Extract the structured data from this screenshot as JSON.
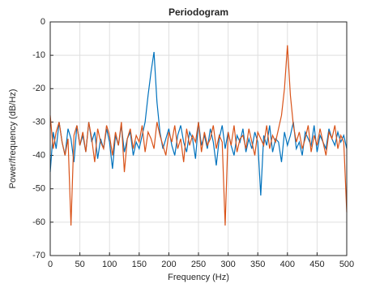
{
  "chart_data": {
    "type": "line",
    "title": "Periodogram",
    "xlabel": "Frequency (Hz)",
    "ylabel": "Power/frequency (dB/Hz)",
    "x": [
      0,
      5,
      10,
      15,
      20,
      25,
      30,
      35,
      40,
      45,
      50,
      55,
      60,
      65,
      70,
      75,
      80,
      85,
      90,
      95,
      100,
      105,
      110,
      115,
      120,
      125,
      130,
      135,
      140,
      145,
      150,
      155,
      160,
      165,
      170,
      175,
      180,
      185,
      190,
      195,
      200,
      205,
      210,
      215,
      220,
      225,
      230,
      235,
      240,
      245,
      250,
      255,
      260,
      265,
      270,
      275,
      280,
      285,
      290,
      295,
      300,
      305,
      310,
      315,
      320,
      325,
      330,
      335,
      340,
      345,
      350,
      355,
      360,
      365,
      370,
      375,
      380,
      385,
      390,
      395,
      400,
      405,
      410,
      415,
      420,
      425,
      430,
      435,
      440,
      445,
      450,
      455,
      460,
      465,
      470,
      475,
      480,
      485,
      490,
      495,
      500
    ],
    "series": [
      {
        "color": "#0072BD",
        "values": [
          -45,
          -33,
          -38,
          -30,
          -36,
          -40,
          -32,
          -35,
          -42,
          -31,
          -37,
          -34,
          -39,
          -30,
          -36,
          -33,
          -41,
          -35,
          -38,
          -32,
          -36,
          -44,
          -34,
          -37,
          -31,
          -39,
          -35,
          -33,
          -40,
          -36,
          -38,
          -34,
          -30,
          -22,
          -15,
          -9,
          -24,
          -33,
          -38,
          -35,
          -32,
          -37,
          -40,
          -34,
          -31,
          -36,
          -39,
          -33,
          -35,
          -41,
          -30,
          -37,
          -34,
          -38,
          -32,
          -36,
          -43,
          -35,
          -31,
          -38,
          -33,
          -37,
          -40,
          -34,
          -36,
          -32,
          -39,
          -35,
          -38,
          -33,
          -36,
          -52,
          -34,
          -37,
          -31,
          -39,
          -35,
          -36,
          -42,
          -33,
          -37,
          -34,
          -30,
          -38,
          -36,
          -40,
          -33,
          -35,
          -37,
          -31,
          -39,
          -34,
          -36,
          -38,
          -32,
          -35,
          -37,
          -33,
          -36,
          -34,
          -38
        ]
      },
      {
        "color": "#D95319",
        "values": [
          -28,
          -38,
          -33,
          -30,
          -36,
          -40,
          -35,
          -61,
          -34,
          -31,
          -37,
          -33,
          -39,
          -30,
          -35,
          -42,
          -32,
          -36,
          -38,
          -31,
          -34,
          -40,
          -33,
          -37,
          -30,
          -45,
          -35,
          -32,
          -38,
          -34,
          -36,
          -31,
          -39,
          -33,
          -35,
          -38,
          -30,
          -34,
          -37,
          -40,
          -33,
          -36,
          -31,
          -38,
          -35,
          -42,
          -32,
          -37,
          -34,
          -36,
          -30,
          -39,
          -33,
          -37,
          -35,
          -31,
          -38,
          -34,
          -36,
          -61,
          -33,
          -37,
          -31,
          -39,
          -35,
          -34,
          -38,
          -32,
          -36,
          -40,
          -33,
          -35,
          -37,
          -31,
          -38,
          -34,
          -36,
          -32,
          -28,
          -20,
          -7,
          -22,
          -31,
          -36,
          -33,
          -38,
          -35,
          -31,
          -39,
          -34,
          -37,
          -32,
          -36,
          -40,
          -33,
          -35,
          -31,
          -38,
          -34,
          -36,
          -57
        ]
      }
    ],
    "xlim": [
      0,
      500
    ],
    "xticks": [
      0,
      50,
      100,
      150,
      200,
      250,
      300,
      350,
      400,
      450,
      500
    ],
    "ylim": [
      -70,
      0
    ],
    "yticks": [
      -70,
      -60,
      -50,
      -40,
      -30,
      -20,
      -10,
      0
    ],
    "grid": true
  }
}
